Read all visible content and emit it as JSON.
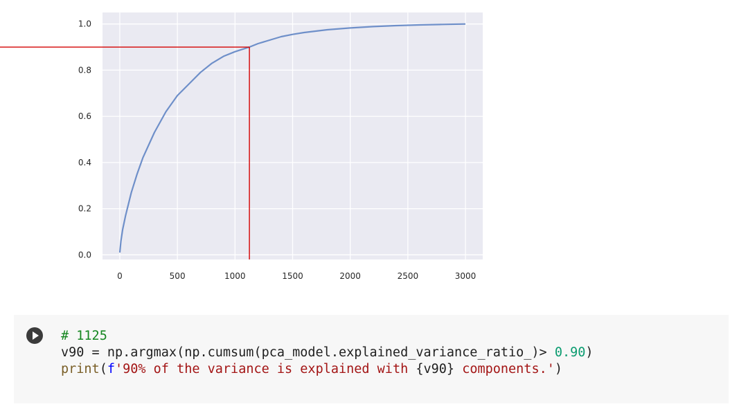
{
  "chart_data": {
    "type": "line",
    "title": "",
    "xlabel": "",
    "ylabel": "",
    "xlim": [
      -150,
      3150
    ],
    "ylim": [
      -0.02,
      1.05
    ],
    "grid": true,
    "x_ticks": [
      0,
      500,
      1000,
      1500,
      2000,
      2500,
      3000
    ],
    "y_ticks": [
      0.0,
      0.2,
      0.4,
      0.6,
      0.8,
      1.0
    ],
    "x_tick_labels": [
      "0",
      "500",
      "1000",
      "1500",
      "2000",
      "2500",
      "3000"
    ],
    "y_tick_labels": [
      "0.0",
      "0.2",
      "0.4",
      "0.6",
      "0.8",
      "1.0"
    ],
    "series": [
      {
        "x": [
          0,
          10,
          25,
          50,
          100,
          150,
          200,
          300,
          400,
          500,
          600,
          700,
          800,
          900,
          1000,
          1125,
          1200,
          1300,
          1400,
          1500,
          1600,
          1800,
          2000,
          2200,
          2400,
          2600,
          2800,
          3000
        ],
        "y": [
          0.01,
          0.06,
          0.11,
          0.17,
          0.27,
          0.35,
          0.42,
          0.53,
          0.62,
          0.69,
          0.74,
          0.79,
          0.83,
          0.86,
          0.88,
          0.9,
          0.915,
          0.93,
          0.945,
          0.955,
          0.963,
          0.975,
          0.983,
          0.989,
          0.993,
          0.996,
          0.998,
          1.0
        ],
        "color": "#6e8fc9"
      }
    ],
    "reference_lines": {
      "horizontal_y": 0.9,
      "vertical_x": 1125,
      "color": "#d40000"
    },
    "background_color": "#eaeaf2",
    "grid_color": "#ffffff"
  },
  "code_cell": {
    "lines": [
      [
        {
          "t": "# 1125",
          "c": "c-comment"
        }
      ],
      [
        {
          "t": "v90 = np.argmax(np.cumsum(pca_model.explained_variance_ratio_)> ",
          "c": ""
        },
        {
          "t": "0.90",
          "c": "c-num"
        },
        {
          "t": ")",
          "c": ""
        }
      ],
      [
        {
          "t": "print",
          "c": "c-fn"
        },
        {
          "t": "(",
          "c": ""
        },
        {
          "t": "f",
          "c": "c-kw"
        },
        {
          "t": "'90% of the variance is explained with ",
          "c": "c-str"
        },
        {
          "t": "{v90}",
          "c": ""
        },
        {
          "t": " components.'",
          "c": "c-str"
        },
        {
          "t": ")",
          "c": ""
        }
      ]
    ]
  }
}
